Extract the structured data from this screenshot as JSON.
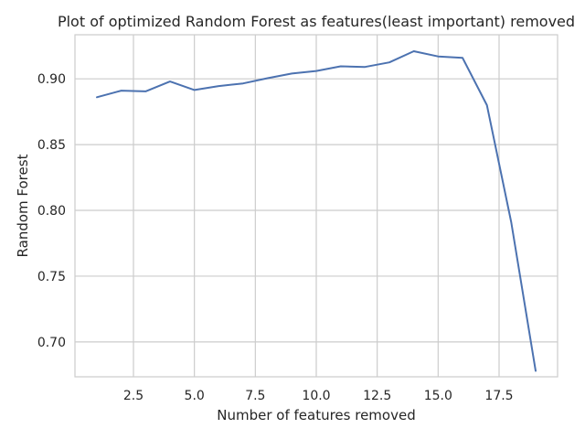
{
  "chart_data": {
    "type": "line",
    "title": "Plot of optimized Random Forest as features(least important) removed",
    "xlabel": "Number of features removed",
    "ylabel": "Random Forest",
    "xlim": [
      0.1,
      19.9
    ],
    "ylim": [
      0.6735,
      0.9335
    ],
    "xticks": [
      2.5,
      5.0,
      7.5,
      10.0,
      12.5,
      15.0,
      17.5
    ],
    "xtick_labels": [
      "2.5",
      "5.0",
      "7.5",
      "10.0",
      "12.5",
      "15.0",
      "17.5"
    ],
    "yticks": [
      0.7,
      0.75,
      0.8,
      0.85,
      0.9
    ],
    "ytick_labels": [
      "0.70",
      "0.75",
      "0.80",
      "0.85",
      "0.90"
    ],
    "grid": true,
    "series": [
      {
        "color": "#4c72b0",
        "x": [
          1,
          2,
          3,
          4,
          5,
          6,
          7,
          8,
          9,
          10,
          11,
          12,
          13,
          14,
          15,
          16,
          17,
          18,
          19
        ],
        "y": [
          0.886,
          0.891,
          0.8905,
          0.898,
          0.8915,
          0.8945,
          0.8965,
          0.9005,
          0.904,
          0.906,
          0.9095,
          0.909,
          0.9125,
          0.921,
          0.917,
          0.916,
          0.88,
          0.791,
          0.678
        ]
      }
    ]
  }
}
